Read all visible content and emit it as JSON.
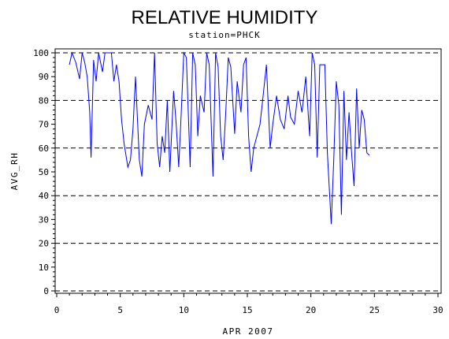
{
  "chart_data": {
    "type": "line",
    "title": "RELATIVE HUMIDITY",
    "subtitle": "station=PHCK",
    "xlabel": "APR 2007",
    "ylabel": "AVG_RH",
    "xlim": [
      0,
      30
    ],
    "ylim": [
      0,
      100
    ],
    "x_ticks": [
      0,
      5,
      10,
      15,
      20,
      25,
      30
    ],
    "y_ticks": [
      0,
      10,
      20,
      30,
      40,
      50,
      60,
      70,
      80,
      90,
      100
    ],
    "gridlines_y": [
      0,
      20,
      40,
      60,
      80,
      100
    ],
    "grid": "dashed horizontal",
    "legend": "none",
    "line_color": "#0000ff",
    "series": [
      {
        "x": [
          1.0,
          1.2,
          1.5,
          1.8,
          2.0,
          2.2,
          2.4,
          2.6,
          2.7,
          2.9,
          3.1,
          3.3,
          3.6,
          3.8,
          4.0,
          4.3,
          4.5,
          4.7,
          4.9,
          5.1,
          5.3,
          5.6,
          5.8,
          6.0,
          6.2,
          6.5,
          6.7,
          6.9,
          7.2,
          7.5,
          7.7,
          7.9,
          8.1,
          8.3,
          8.5,
          8.7,
          8.9,
          9.2,
          9.4,
          9.6,
          9.8,
          10.0,
          10.2,
          10.5,
          10.7,
          10.9,
          11.1,
          11.3,
          11.6,
          11.8,
          12.0,
          12.3,
          12.5,
          12.7,
          12.9,
          13.1,
          13.3,
          13.5,
          13.7,
          14.0,
          14.2,
          14.5,
          14.7,
          14.9,
          15.1,
          15.3,
          15.5,
          16.0,
          16.2,
          16.5,
          16.8,
          17.0,
          17.3,
          17.6,
          17.9,
          18.2,
          18.4,
          18.7,
          19.0,
          19.3,
          19.6,
          19.9,
          20.1,
          20.3,
          20.5,
          20.7,
          20.9,
          21.1,
          21.3,
          21.6,
          21.8,
          22.0,
          22.2,
          22.4,
          22.6,
          22.8,
          23.0,
          23.2,
          23.4,
          23.6,
          23.8,
          24.0,
          24.2,
          24.4,
          24.6
        ],
        "y": [
          95,
          100,
          96,
          89,
          100,
          96,
          90,
          75,
          56,
          97,
          88,
          100,
          92,
          100,
          100,
          100,
          88,
          95,
          88,
          72,
          62,
          52,
          55,
          68,
          90,
          55,
          48,
          70,
          78,
          72,
          100,
          62,
          52,
          65,
          58,
          80,
          50,
          84,
          70,
          52,
          75,
          100,
          98,
          52,
          100,
          95,
          65,
          82,
          75,
          100,
          95,
          48,
          100,
          94,
          65,
          55,
          75,
          98,
          94,
          66,
          88,
          75,
          95,
          98,
          65,
          50,
          60,
          70,
          80,
          95,
          60,
          70,
          82,
          72,
          68,
          82,
          73,
          70,
          84,
          75,
          90,
          65,
          100,
          95,
          56,
          95,
          95,
          95,
          58,
          28,
          55,
          88,
          78,
          32,
          84,
          55,
          75,
          58,
          44,
          85,
          60,
          76,
          72,
          58,
          57
        ]
      }
    ]
  }
}
